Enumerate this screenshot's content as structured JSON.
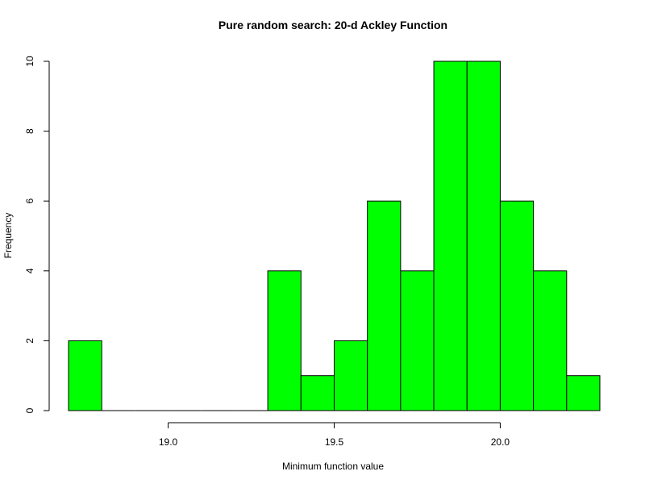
{
  "chart_data": {
    "type": "histogram",
    "title": "Pure random search: 20-d Ackley Function",
    "xlabel": "Minimum function value",
    "ylabel": "Frequency",
    "bins": [
      {
        "start": 18.7,
        "end": 18.8,
        "count": 2
      },
      {
        "start": 18.8,
        "end": 18.9,
        "count": 0
      },
      {
        "start": 18.9,
        "end": 19.0,
        "count": 0
      },
      {
        "start": 19.0,
        "end": 19.1,
        "count": 0
      },
      {
        "start": 19.1,
        "end": 19.2,
        "count": 0
      },
      {
        "start": 19.2,
        "end": 19.3,
        "count": 0
      },
      {
        "start": 19.3,
        "end": 19.4,
        "count": 4
      },
      {
        "start": 19.4,
        "end": 19.5,
        "count": 1
      },
      {
        "start": 19.5,
        "end": 19.6,
        "count": 2
      },
      {
        "start": 19.6,
        "end": 19.7,
        "count": 6
      },
      {
        "start": 19.7,
        "end": 19.8,
        "count": 4
      },
      {
        "start": 19.8,
        "end": 19.9,
        "count": 10
      },
      {
        "start": 19.9,
        "end": 20.0,
        "count": 10
      },
      {
        "start": 20.0,
        "end": 20.1,
        "count": 6
      },
      {
        "start": 20.1,
        "end": 20.2,
        "count": 4
      },
      {
        "start": 20.2,
        "end": 20.3,
        "count": 1
      }
    ],
    "xlim": [
      18.7,
      20.3
    ],
    "ylim": [
      0,
      10
    ],
    "x_ticks": [
      19.0,
      19.5,
      20.0
    ],
    "x_tick_labels": [
      "19.0",
      "19.5",
      "20.0"
    ],
    "y_ticks": [
      0,
      2,
      4,
      6,
      8,
      10
    ],
    "y_tick_labels": [
      "0",
      "2",
      "4",
      "6",
      "8",
      "10"
    ],
    "bar_color": "#00ff00",
    "bar_border_color": "#000000",
    "grid": false
  }
}
